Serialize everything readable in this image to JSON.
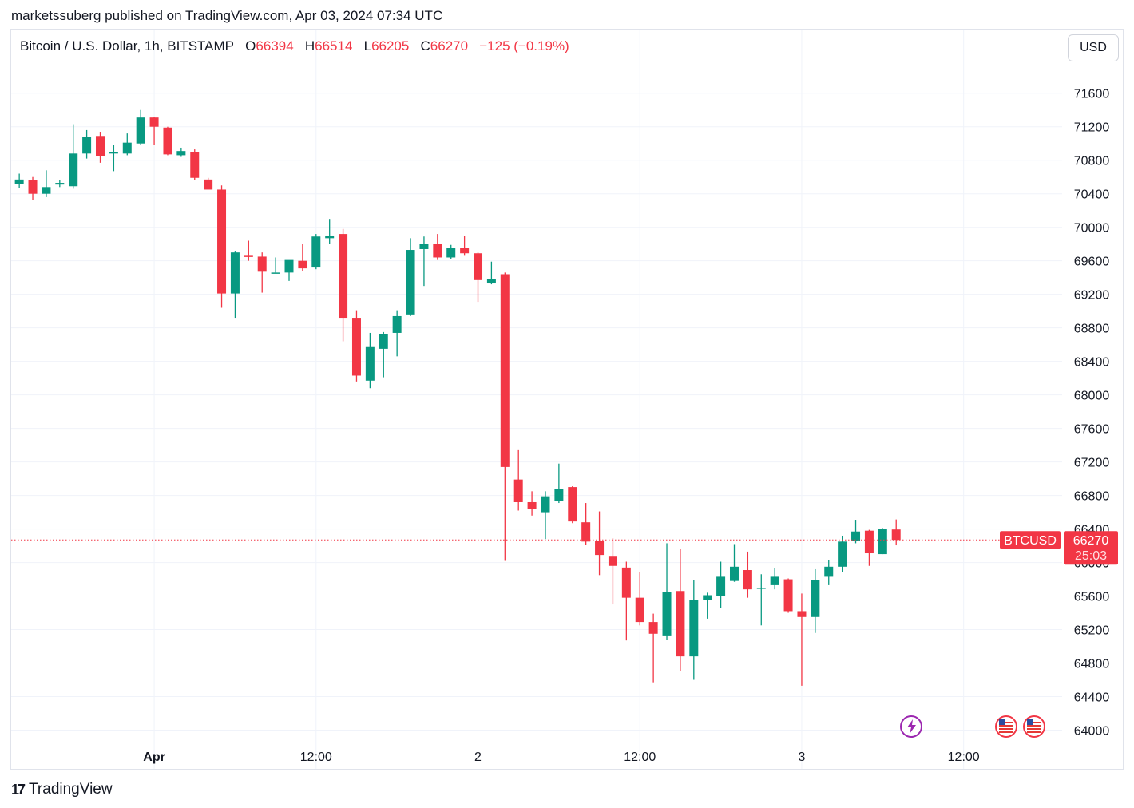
{
  "publisher_line": "marketssuberg published on TradingView.com, Apr 03, 2024 07:34 UTC",
  "header": {
    "symbol": "Bitcoin / U.S. Dollar, 1h, BITSTAMP",
    "o_label": "O",
    "o_value": "66394",
    "h_label": "H",
    "h_value": "66514",
    "l_label": "L",
    "l_value": "66205",
    "c_label": "C",
    "c_value": "66270",
    "change": "−125 (−0.19%)"
  },
  "currency_button": "USD",
  "price_tag": {
    "symbol": "BTCUSD",
    "price": "66270",
    "countdown": "25:03"
  },
  "footer": {
    "logo": "17",
    "brand": "TradingView"
  },
  "colors": {
    "up": "#089981",
    "down": "#f23645",
    "grid": "#f0f3fa",
    "axis_text": "#131722"
  },
  "chart_data": {
    "type": "candlestick",
    "interval": "1h",
    "y_ticks": [
      71600,
      71200,
      70800,
      70400,
      70000,
      69600,
      69200,
      68800,
      68400,
      68000,
      67600,
      67200,
      66800,
      66400,
      66000,
      65600,
      65200,
      64800,
      64400,
      64000
    ],
    "ylim": [
      63900,
      71950
    ],
    "x_ticks": [
      {
        "label": "Apr",
        "index": 10
      },
      {
        "label": "12:00",
        "index": 22
      },
      {
        "label": "2",
        "index": 34
      },
      {
        "label": "12:00",
        "index": 46
      },
      {
        "label": "3",
        "index": 58
      },
      {
        "label": "12:00",
        "index": 70
      }
    ],
    "x_range": [
      -0.6,
      77.3
    ],
    "last_price": 66270,
    "candles": [
      {
        "o": 70520,
        "h": 70640,
        "l": 70470,
        "c": 70570
      },
      {
        "o": 70560,
        "h": 70600,
        "l": 70330,
        "c": 70400
      },
      {
        "o": 70400,
        "h": 70680,
        "l": 70360,
        "c": 70480
      },
      {
        "o": 70510,
        "h": 70560,
        "l": 70480,
        "c": 70530
      },
      {
        "o": 70490,
        "h": 71230,
        "l": 70460,
        "c": 70880
      },
      {
        "o": 70880,
        "h": 71160,
        "l": 70820,
        "c": 71080
      },
      {
        "o": 71090,
        "h": 71140,
        "l": 70770,
        "c": 70850
      },
      {
        "o": 70880,
        "h": 70980,
        "l": 70670,
        "c": 70900
      },
      {
        "o": 70880,
        "h": 71120,
        "l": 70860,
        "c": 71010
      },
      {
        "o": 71000,
        "h": 71400,
        "l": 70980,
        "c": 71310
      },
      {
        "o": 71310,
        "h": 71320,
        "l": 70980,
        "c": 71200
      },
      {
        "o": 71190,
        "h": 71200,
        "l": 70860,
        "c": 70870
      },
      {
        "o": 70860,
        "h": 70950,
        "l": 70840,
        "c": 70910
      },
      {
        "o": 70900,
        "h": 70930,
        "l": 70560,
        "c": 70590
      },
      {
        "o": 70570,
        "h": 70590,
        "l": 70460,
        "c": 70450
      },
      {
        "o": 70450,
        "h": 70500,
        "l": 69040,
        "c": 69210
      },
      {
        "o": 69210,
        "h": 69720,
        "l": 68920,
        "c": 69700
      },
      {
        "o": 69660,
        "h": 69840,
        "l": 69600,
        "c": 69650
      },
      {
        "o": 69650,
        "h": 69700,
        "l": 69220,
        "c": 69470
      },
      {
        "o": 69450,
        "h": 69640,
        "l": 69460,
        "c": 69460
      },
      {
        "o": 69460,
        "h": 69600,
        "l": 69360,
        "c": 69610
      },
      {
        "o": 69600,
        "h": 69800,
        "l": 69480,
        "c": 69510
      },
      {
        "o": 69520,
        "h": 69920,
        "l": 69500,
        "c": 69890
      },
      {
        "o": 69870,
        "h": 70100,
        "l": 69800,
        "c": 69900
      },
      {
        "o": 69920,
        "h": 69980,
        "l": 68640,
        "c": 68920
      },
      {
        "o": 68920,
        "h": 69010,
        "l": 68160,
        "c": 68230
      },
      {
        "o": 68170,
        "h": 68740,
        "l": 68080,
        "c": 68580
      },
      {
        "o": 68550,
        "h": 68750,
        "l": 68210,
        "c": 68730
      },
      {
        "o": 68740,
        "h": 69010,
        "l": 68460,
        "c": 68940
      },
      {
        "o": 68960,
        "h": 69870,
        "l": 68940,
        "c": 69730
      },
      {
        "o": 69740,
        "h": 69890,
        "l": 69300,
        "c": 69800
      },
      {
        "o": 69800,
        "h": 69920,
        "l": 69610,
        "c": 69640
      },
      {
        "o": 69640,
        "h": 69790,
        "l": 69620,
        "c": 69750
      },
      {
        "o": 69750,
        "h": 69900,
        "l": 69660,
        "c": 69690
      },
      {
        "o": 69690,
        "h": 69700,
        "l": 69110,
        "c": 69370
      },
      {
        "o": 69330,
        "h": 69590,
        "l": 69320,
        "c": 69380
      },
      {
        "o": 69440,
        "h": 69460,
        "l": 66020,
        "c": 67140
      },
      {
        "o": 66990,
        "h": 67350,
        "l": 66620,
        "c": 66720
      },
      {
        "o": 66720,
        "h": 66850,
        "l": 66560,
        "c": 66640
      },
      {
        "o": 66600,
        "h": 66850,
        "l": 66280,
        "c": 66790
      },
      {
        "o": 66730,
        "h": 67180,
        "l": 66710,
        "c": 66880
      },
      {
        "o": 66900,
        "h": 66910,
        "l": 66470,
        "c": 66490
      },
      {
        "o": 66480,
        "h": 66710,
        "l": 66210,
        "c": 66250
      },
      {
        "o": 66260,
        "h": 66610,
        "l": 65850,
        "c": 66090
      },
      {
        "o": 66070,
        "h": 66290,
        "l": 65500,
        "c": 65960
      },
      {
        "o": 65940,
        "h": 66010,
        "l": 65070,
        "c": 65580
      },
      {
        "o": 65580,
        "h": 65890,
        "l": 65250,
        "c": 65290
      },
      {
        "o": 65290,
        "h": 65390,
        "l": 64570,
        "c": 65150
      },
      {
        "o": 65130,
        "h": 66230,
        "l": 65080,
        "c": 65650
      },
      {
        "o": 65660,
        "h": 66160,
        "l": 64710,
        "c": 64880
      },
      {
        "o": 64880,
        "h": 65790,
        "l": 64600,
        "c": 65550
      },
      {
        "o": 65550,
        "h": 65640,
        "l": 65330,
        "c": 65610
      },
      {
        "o": 65600,
        "h": 66010,
        "l": 65460,
        "c": 65830
      },
      {
        "o": 65780,
        "h": 66220,
        "l": 65770,
        "c": 65950
      },
      {
        "o": 65910,
        "h": 66130,
        "l": 65580,
        "c": 65680
      },
      {
        "o": 65690,
        "h": 65860,
        "l": 65250,
        "c": 65700
      },
      {
        "o": 65730,
        "h": 65930,
        "l": 65680,
        "c": 65830
      },
      {
        "o": 65800,
        "h": 65810,
        "l": 65400,
        "c": 65420
      },
      {
        "o": 65420,
        "h": 65630,
        "l": 64530,
        "c": 65350
      },
      {
        "o": 65350,
        "h": 65920,
        "l": 65160,
        "c": 65790
      },
      {
        "o": 65830,
        "h": 66030,
        "l": 65730,
        "c": 65950
      },
      {
        "o": 65950,
        "h": 66320,
        "l": 65890,
        "c": 66250
      },
      {
        "o": 66260,
        "h": 66510,
        "l": 66230,
        "c": 66370
      },
      {
        "o": 66380,
        "h": 66390,
        "l": 65960,
        "c": 66110
      },
      {
        "o": 66100,
        "h": 66410,
        "l": 66100,
        "c": 66400
      },
      {
        "o": 66394,
        "h": 66514,
        "l": 66205,
        "c": 66270
      }
    ]
  }
}
